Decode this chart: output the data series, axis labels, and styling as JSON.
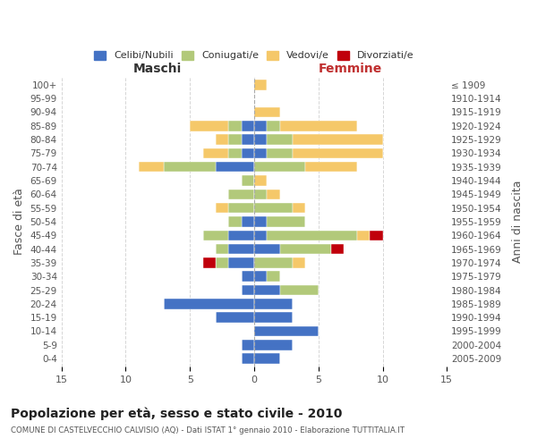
{
  "age_groups": [
    "100+",
    "95-99",
    "90-94",
    "85-89",
    "80-84",
    "75-79",
    "70-74",
    "65-69",
    "60-64",
    "55-59",
    "50-54",
    "45-49",
    "40-44",
    "35-39",
    "30-34",
    "25-29",
    "20-24",
    "15-19",
    "10-14",
    "5-9",
    "0-4"
  ],
  "birth_years": [
    "≤ 1909",
    "1910-1914",
    "1915-1919",
    "1920-1924",
    "1925-1929",
    "1930-1934",
    "1935-1939",
    "1940-1944",
    "1945-1949",
    "1950-1954",
    "1955-1959",
    "1960-1964",
    "1965-1969",
    "1970-1974",
    "1975-1979",
    "1980-1984",
    "1985-1989",
    "1990-1994",
    "1995-1999",
    "2000-2004",
    "2005-2009"
  ],
  "maschi": {
    "celibi": [
      0,
      0,
      0,
      1,
      1,
      1,
      3,
      0,
      0,
      0,
      1,
      2,
      2,
      2,
      1,
      1,
      7,
      3,
      0,
      1,
      1
    ],
    "coniugati": [
      0,
      0,
      0,
      1,
      1,
      1,
      4,
      1,
      2,
      2,
      1,
      2,
      1,
      1,
      0,
      0,
      0,
      0,
      0,
      0,
      0
    ],
    "vedovi": [
      0,
      0,
      0,
      3,
      1,
      2,
      2,
      0,
      0,
      1,
      0,
      0,
      0,
      0,
      0,
      0,
      0,
      0,
      0,
      0,
      0
    ],
    "divorziati": [
      0,
      0,
      0,
      0,
      0,
      0,
      0,
      0,
      0,
      0,
      0,
      0,
      0,
      1,
      0,
      0,
      0,
      0,
      0,
      0,
      0
    ]
  },
  "femmine": {
    "nubili": [
      0,
      0,
      0,
      1,
      1,
      1,
      0,
      0,
      0,
      0,
      1,
      1,
      2,
      0,
      1,
      2,
      3,
      3,
      5,
      3,
      2
    ],
    "coniugate": [
      0,
      0,
      0,
      1,
      2,
      2,
      4,
      0,
      1,
      3,
      3,
      7,
      4,
      3,
      1,
      3,
      0,
      0,
      0,
      0,
      0
    ],
    "vedove": [
      1,
      0,
      2,
      6,
      7,
      7,
      4,
      1,
      1,
      1,
      0,
      1,
      0,
      1,
      0,
      0,
      0,
      0,
      0,
      0,
      0
    ],
    "divorziate": [
      0,
      0,
      0,
      0,
      0,
      0,
      0,
      0,
      0,
      0,
      0,
      1,
      1,
      0,
      0,
      0,
      0,
      0,
      0,
      0,
      0
    ]
  },
  "colors": {
    "celibi": "#4472C4",
    "coniugati": "#B2C97A",
    "vedovi": "#F5C869",
    "divorziati": "#C0000B"
  },
  "xlim": 15,
  "title": "Popolazione per età, sesso e stato civile - 2010",
  "subtitle": "COMUNE DI CASTELVECCHIO CALVISIO (AQ) - Dati ISTAT 1° gennaio 2010 - Elaborazione TUTTITALIA.IT",
  "ylabel_left": "Fasce di età",
  "ylabel_right": "Anni di nascita",
  "legend_labels": [
    "Celibi/Nubili",
    "Coniugati/e",
    "Vedovi/e",
    "Divorziati/e"
  ],
  "maschi_label": "Maschi",
  "femmine_label": "Femmine"
}
